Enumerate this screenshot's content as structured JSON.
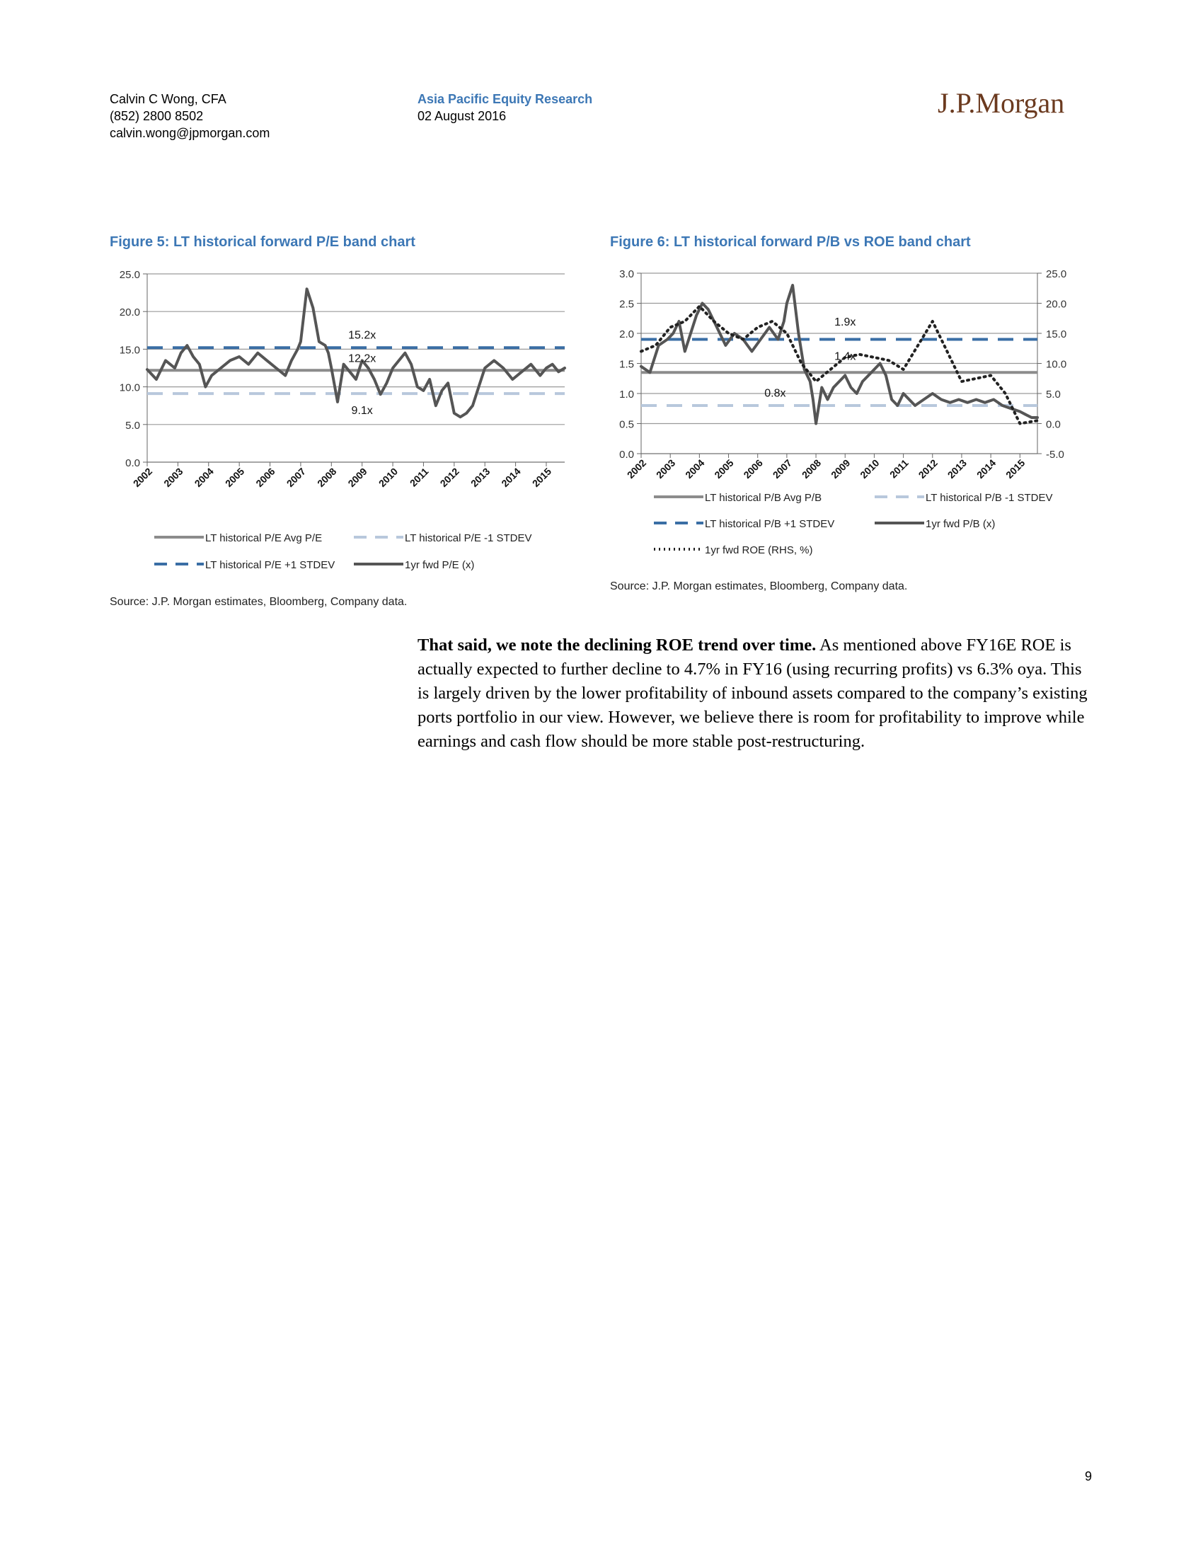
{
  "header": {
    "author_name": "Calvin C Wong, CFA",
    "author_phone": "(852) 2800 8502",
    "author_email": "calvin.wong@jpmorgan.com",
    "department": "Asia Pacific Equity Research",
    "date": "02 August 2016",
    "logo_text": "J.P.Morgan"
  },
  "figure5": {
    "title": "Figure 5: LT historical forward P/E band chart",
    "source": "Source: J.P. Morgan estimates, Bloomberg, Company data."
  },
  "figure6": {
    "title": "Figure 6: LT historical forward P/B vs ROE band chart",
    "source": "Source: J.P. Morgan estimates, Bloomberg, Company data."
  },
  "colors": {
    "title_blue": "#3c77b5",
    "avg_line": "#8c8c8c",
    "minus_stdev": "#b8c8dc",
    "plus_stdev": "#3a6ea5",
    "series_line": "#555555",
    "roe_dots": "#222222",
    "logo": "#6b3a1f"
  },
  "chart_data": [
    {
      "type": "line",
      "x_tick_labels": [
        "2002",
        "2003",
        "2004",
        "2005",
        "2006",
        "2007",
        "2008",
        "2009",
        "2010",
        "2011",
        "2012",
        "2013",
        "2014",
        "2015"
      ],
      "y_tick_labels": [
        "0.0",
        "5.0",
        "10.0",
        "15.0",
        "20.0",
        "25.0"
      ],
      "ylim": [
        0,
        25
      ],
      "xlim": [
        2002.0,
        2015.6
      ],
      "grid": true,
      "legend_position": "bottom",
      "annotations": [
        {
          "text": "15.2x",
          "x": 2009.0,
          "y": 16.4
        },
        {
          "text": "12.2x",
          "x": 2009.0,
          "y": 13.3
        },
        {
          "text": "9.1x",
          "x": 2009.0,
          "y": 6.4
        }
      ],
      "series": [
        {
          "name": "LT historical P/E Avg P/E",
          "style": "solid-gray",
          "constant": 12.2
        },
        {
          "name": "LT historical P/E -1 STDEV",
          "style": "dashed-light",
          "constant": 9.1
        },
        {
          "name": "LT historical P/E +1 STDEV",
          "style": "dashed-blue",
          "constant": 15.2
        },
        {
          "name": "1yr fwd P/E (x)",
          "style": "solid-dark",
          "x": [
            2002.0,
            2002.3,
            2002.6,
            2002.9,
            2003.1,
            2003.3,
            2003.5,
            2003.7,
            2003.9,
            2004.1,
            2004.4,
            2004.7,
            2005.0,
            2005.3,
            2005.6,
            2005.9,
            2006.2,
            2006.5,
            2006.7,
            2006.9,
            2007.0,
            2007.2,
            2007.4,
            2007.6,
            2007.8,
            2007.9,
            2008.0,
            2008.2,
            2008.4,
            2008.6,
            2008.8,
            2009.0,
            2009.2,
            2009.4,
            2009.6,
            2009.8,
            2010.0,
            2010.2,
            2010.4,
            2010.6,
            2010.8,
            2011.0,
            2011.2,
            2011.4,
            2011.6,
            2011.8,
            2012.0,
            2012.2,
            2012.4,
            2012.6,
            2012.8,
            2013.0,
            2013.3,
            2013.6,
            2013.9,
            2014.2,
            2014.5,
            2014.8,
            2015.0,
            2015.2,
            2015.4,
            2015.6
          ],
          "y": [
            12.3,
            11.0,
            13.5,
            12.5,
            14.5,
            15.5,
            14.0,
            13.0,
            10.0,
            11.5,
            12.5,
            13.5,
            14.0,
            13.0,
            14.5,
            13.5,
            12.5,
            11.5,
            13.5,
            15.0,
            16.0,
            23.0,
            20.5,
            16.0,
            15.5,
            14.5,
            12.5,
            8.0,
            13.0,
            12.0,
            11.0,
            13.5,
            12.5,
            11.0,
            9.0,
            10.5,
            12.5,
            13.5,
            14.5,
            13.0,
            10.0,
            9.5,
            11.0,
            7.5,
            9.5,
            10.5,
            6.5,
            6.0,
            6.5,
            7.5,
            10.0,
            12.5,
            13.5,
            12.5,
            11.0,
            12.0,
            13.0,
            11.5,
            12.5,
            13.0,
            12.0,
            12.5
          ]
        }
      ]
    },
    {
      "type": "line",
      "x_tick_labels": [
        "2002",
        "2003",
        "2004",
        "2005",
        "2006",
        "2007",
        "2008",
        "2009",
        "2010",
        "2011",
        "2012",
        "2013",
        "2014",
        "2015"
      ],
      "y_tick_labels": [
        "0.0",
        "0.5",
        "1.0",
        "1.5",
        "2.0",
        "2.5",
        "3.0"
      ],
      "y2_tick_labels": [
        "-5.0",
        "0.0",
        "5.0",
        "10.0",
        "15.0",
        "20.0",
        "25.0"
      ],
      "ylim": [
        0,
        3
      ],
      "y2lim": [
        -5,
        25
      ],
      "xlim": [
        2002.0,
        2015.6
      ],
      "grid": true,
      "legend_position": "bottom",
      "annotations": [
        {
          "text": "1.9x",
          "x": 2009.0,
          "y": 2.13
        },
        {
          "text": "1.4x",
          "x": 2009.0,
          "y": 1.56
        },
        {
          "text": "0.8x",
          "x": 2006.6,
          "y": 0.95
        }
      ],
      "series": [
        {
          "name": "LT historical P/B Avg P/B",
          "style": "solid-gray",
          "constant": 1.35
        },
        {
          "name": "LT historical P/B -1 STDEV",
          "style": "dashed-light",
          "constant": 0.8
        },
        {
          "name": "LT historical P/B +1 STDEV",
          "style": "dashed-blue",
          "constant": 1.9
        },
        {
          "name": "1yr fwd P/B (x)",
          "style": "solid-dark",
          "x": [
            2002.0,
            2002.3,
            2002.6,
            2002.9,
            2003.1,
            2003.3,
            2003.5,
            2003.7,
            2003.9,
            2004.1,
            2004.3,
            2004.6,
            2004.9,
            2005.2,
            2005.5,
            2005.8,
            2006.1,
            2006.4,
            2006.7,
            2006.9,
            2007.0,
            2007.2,
            2007.4,
            2007.6,
            2007.8,
            2007.9,
            2008.0,
            2008.2,
            2008.4,
            2008.6,
            2008.8,
            2009.0,
            2009.2,
            2009.4,
            2009.6,
            2009.8,
            2010.0,
            2010.2,
            2010.4,
            2010.6,
            2010.8,
            2011.0,
            2011.2,
            2011.4,
            2011.7,
            2012.0,
            2012.3,
            2012.6,
            2012.9,
            2013.2,
            2013.5,
            2013.8,
            2014.1,
            2014.4,
            2014.7,
            2015.0,
            2015.2,
            2015.4,
            2015.6
          ],
          "y": [
            1.45,
            1.35,
            1.8,
            1.9,
            2.0,
            2.2,
            1.7,
            2.0,
            2.3,
            2.5,
            2.4,
            2.1,
            1.8,
            2.0,
            1.9,
            1.7,
            1.9,
            2.1,
            1.9,
            2.2,
            2.5,
            2.8,
            2.0,
            1.4,
            1.2,
            0.9,
            0.5,
            1.1,
            0.9,
            1.1,
            1.2,
            1.3,
            1.1,
            1.0,
            1.2,
            1.3,
            1.4,
            1.5,
            1.3,
            0.9,
            0.8,
            1.0,
            0.9,
            0.8,
            0.9,
            1.0,
            0.9,
            0.85,
            0.9,
            0.85,
            0.9,
            0.85,
            0.9,
            0.8,
            0.75,
            0.7,
            0.65,
            0.6,
            0.6
          ]
        },
        {
          "name": "1yr fwd ROE (RHS, %)",
          "style": "dotted",
          "axis": "right",
          "x": [
            2002.0,
            2002.5,
            2003.0,
            2003.5,
            2004.0,
            2004.5,
            2005.0,
            2005.5,
            2006.0,
            2006.5,
            2007.0,
            2007.5,
            2008.0,
            2008.5,
            2009.0,
            2009.5,
            2010.0,
            2010.5,
            2011.0,
            2011.5,
            2012.0,
            2012.5,
            2013.0,
            2013.5,
            2014.0,
            2014.5,
            2015.0,
            2015.6
          ],
          "y": [
            12,
            13,
            16,
            17,
            19.5,
            17,
            15,
            14,
            16,
            17,
            15,
            10,
            7,
            9,
            11,
            11.5,
            11,
            10.5,
            9,
            13,
            17,
            12,
            7,
            7.5,
            8,
            5,
            0,
            0.5
          ]
        }
      ]
    }
  ],
  "body": {
    "lead": "That said, we note the declining ROE trend over time.",
    "text": " As mentioned above FY16E ROE is actually expected to further decline to 4.7% in FY16 (using recurring profits) vs 6.3% oya. This is largely driven by the lower profitability of inbound assets compared to the company’s existing ports portfolio in our view. However, we believe there is room for profitability to improve while earnings and cash flow should be more stable post-restructuring."
  },
  "footer": {
    "page_number": "9"
  }
}
